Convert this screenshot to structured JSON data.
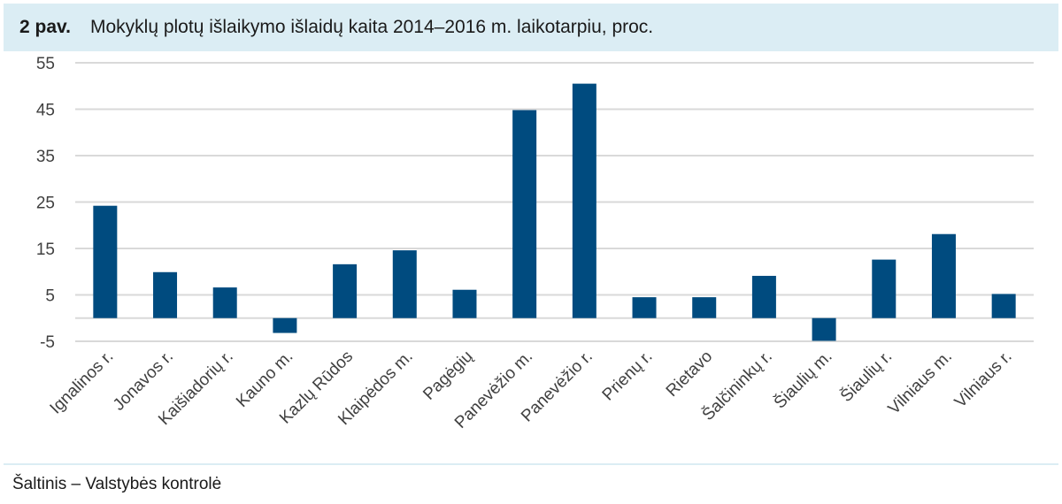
{
  "header": {
    "figure_number": "2 pav.",
    "title": "Mokyklų plotų išlaikymo išlaidų kaita 2014–2016 m. laikotarpiu, proc."
  },
  "source": "Šaltinis – Valstybės kontrolė",
  "colors": {
    "bar": "#004b7f",
    "header_bg": "#dbedf4",
    "grid": "#d9d9d9"
  },
  "chart_data": {
    "type": "bar",
    "title": "Mokyklų plotų išlaikymo išlaidų kaita 2014–2016 m. laikotarpiu, proc.",
    "xlabel": "",
    "ylabel": "",
    "categories": [
      "Ignalinos r.",
      "Jonavos r.",
      "Kaišiadorių r.",
      "Kauno m.",
      "Kazlų Rūdos",
      "Klaipėdos m.",
      "Pagėgių",
      "Panevėžio m.",
      "Panevėžio r.",
      "Prienų r.",
      "Rietavo",
      "Šalčininkų r.",
      "Šiaulių m.",
      "Šiaulių r.",
      "Vilniaus m.",
      "Vilniaus r."
    ],
    "values": [
      24.2,
      9.9,
      6.6,
      -3.2,
      11.6,
      14.6,
      6.1,
      44.8,
      50.5,
      4.5,
      4.5,
      9.1,
      -4.9,
      12.6,
      18.1,
      5.2
    ],
    "yticks": [
      -5,
      5,
      15,
      25,
      35,
      45,
      55
    ],
    "ylim": [
      -5,
      55
    ],
    "grid": true,
    "legend": "none"
  }
}
